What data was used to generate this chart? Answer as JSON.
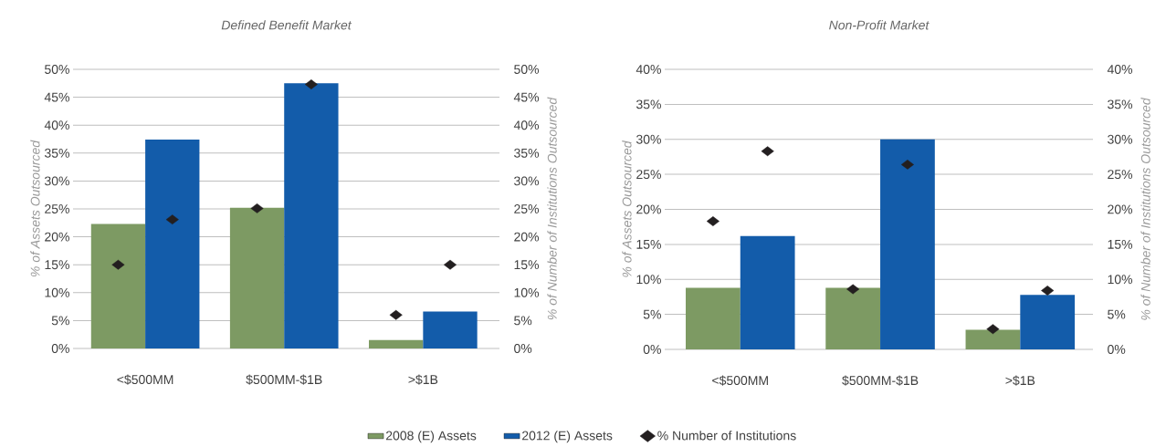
{
  "chart_data": [
    {
      "type": "bar",
      "title": "Defined Benefit Market",
      "ylabel": "% of Assets Outsourced",
      "y2label": "% of Number of Institutions Outsourced",
      "categories": [
        "<$500MM",
        "$500MM-$1B",
        ">$1B"
      ],
      "series": [
        {
          "name": "2008 (E) Assets",
          "color": "#7d9a63",
          "values": [
            22.3,
            25.2,
            1.5
          ]
        },
        {
          "name": "2012 (E) Assets",
          "color": "#135caa",
          "values": [
            37.4,
            47.5,
            6.6
          ]
        },
        {
          "name": "% Number of Institutions",
          "type": "scatter",
          "axis": "y2",
          "marker": "diamond",
          "color": "#231f20",
          "values": [
            15.0,
            25.1,
            6.0
          ]
        },
        {
          "type": "scatter",
          "axis": "y2",
          "marker": "diamond",
          "color": "#231f20",
          "values": [
            23.1,
            47.3,
            15.0
          ]
        }
      ],
      "ylim": [
        0,
        50
      ],
      "yticks": [
        {
          "value": 0,
          "label": "0%"
        },
        {
          "value": 5,
          "label": "5%"
        },
        {
          "value": 10,
          "label": "10%"
        },
        {
          "value": 15,
          "label": "15%"
        },
        {
          "value": 20,
          "label": "20%"
        },
        {
          "value": 25,
          "label": "25%"
        },
        {
          "value": 30,
          "label": "30%"
        },
        {
          "value": 35,
          "label": "35%"
        },
        {
          "value": 40,
          "label": "40%"
        },
        {
          "value": 45,
          "label": "45%"
        },
        {
          "value": 50,
          "label": "50%"
        }
      ],
      "y2lim": [
        0,
        50
      ],
      "y2ticks": [
        {
          "value": 0,
          "label": "0%"
        },
        {
          "value": 5,
          "label": "5%"
        },
        {
          "value": 10,
          "label": "10%"
        },
        {
          "value": 15,
          "label": "15%"
        },
        {
          "value": 20,
          "label": "20%"
        },
        {
          "value": 25,
          "label": "25%"
        },
        {
          "value": 30,
          "label": "30%"
        },
        {
          "value": 35,
          "label": "35%"
        },
        {
          "value": 40,
          "label": "40%"
        },
        {
          "value": 45,
          "label": "45%"
        },
        {
          "value": 50,
          "label": "50%"
        }
      ],
      "grid": "y",
      "legend": "bottom"
    },
    {
      "type": "bar",
      "title": "Non-Profit Market",
      "ylabel": "% of Assets Outsourced",
      "y2label": "% of Number of Institutions Outsourced",
      "categories": [
        "<$500MM",
        "$500MM-$1B",
        ">$1B"
      ],
      "series": [
        {
          "color": "#7d9a63",
          "values": [
            8.8,
            8.8,
            2.8
          ]
        },
        {
          "color": "#135caa",
          "values": [
            16.2,
            30.0,
            7.8
          ]
        },
        {
          "type": "scatter",
          "axis": "y2",
          "marker": "diamond",
          "color": "#231f20",
          "values": [
            18.3,
            8.6,
            2.9
          ]
        },
        {
          "type": "scatter",
          "axis": "y2",
          "marker": "diamond",
          "color": "#231f20",
          "values": [
            28.3,
            26.4,
            8.4
          ]
        }
      ],
      "ylim": [
        0,
        40
      ],
      "yticks": [
        {
          "value": 0,
          "label": "0%"
        },
        {
          "value": 5,
          "label": "5%"
        },
        {
          "value": 10,
          "label": "10%"
        },
        {
          "value": 15,
          "label": "15%"
        },
        {
          "value": 20,
          "label": "20%"
        },
        {
          "value": 25,
          "label": "25%"
        },
        {
          "value": 30,
          "label": "30%"
        },
        {
          "value": 35,
          "label": "35%"
        },
        {
          "value": 40,
          "label": "40%"
        }
      ],
      "y2lim": [
        0,
        40
      ],
      "y2ticks": [
        {
          "value": 0,
          "label": "0%"
        },
        {
          "value": 5,
          "label": "5%"
        },
        {
          "value": 10,
          "label": "10%"
        },
        {
          "value": 15,
          "label": "15%"
        },
        {
          "value": 20,
          "label": "20%"
        },
        {
          "value": 25,
          "label": "25%"
        },
        {
          "value": 30,
          "label": "30%"
        },
        {
          "value": 35,
          "label": "35%"
        },
        {
          "value": 40,
          "label": "40%"
        }
      ],
      "grid": "y"
    }
  ]
}
